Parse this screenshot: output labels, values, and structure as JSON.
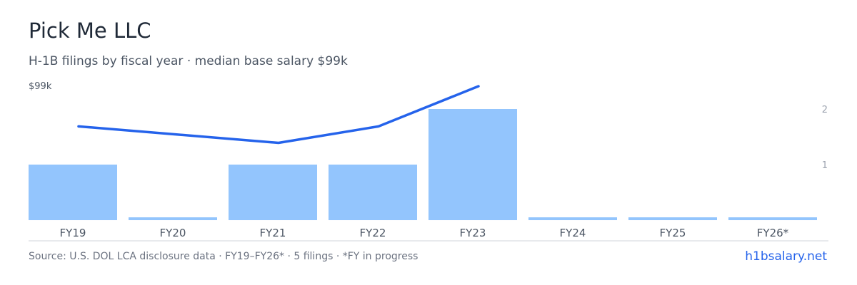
{
  "header": {
    "title": "Pick Me LLC",
    "subtitle": "H-1B filings by fiscal year · median base salary $99k"
  },
  "footer": {
    "source": "Source: U.S. DOL LCA disclosure data · FY19–FY26* · 5 filings · *FY in progress",
    "brand": "h1bsalary.net"
  },
  "colors": {
    "bar": "#93c5fd",
    "line": "#2563eb",
    "axis": "#d1d5db",
    "tick_text": "#4b5563",
    "axis_label": "#9ca3af"
  },
  "chart_data": {
    "type": "bar",
    "categories": [
      "FY19",
      "FY20",
      "FY21",
      "FY22",
      "FY23",
      "FY24",
      "FY25",
      "FY26*"
    ],
    "series": [
      {
        "type": "bar",
        "axis": "right",
        "values": [
          1,
          0,
          1,
          1,
          2,
          0,
          0,
          0
        ]
      },
      {
        "type": "line",
        "axis": "left",
        "values": [
          1.82,
          null,
          1.5,
          1.82,
          2.6,
          null,
          null,
          null
        ]
      }
    ],
    "left_axis": {
      "tick_label": "$99k"
    },
    "right_axis": {
      "range": [
        0,
        2
      ],
      "ticks": [
        "1",
        "2"
      ]
    },
    "grid": false,
    "legend": "none"
  }
}
